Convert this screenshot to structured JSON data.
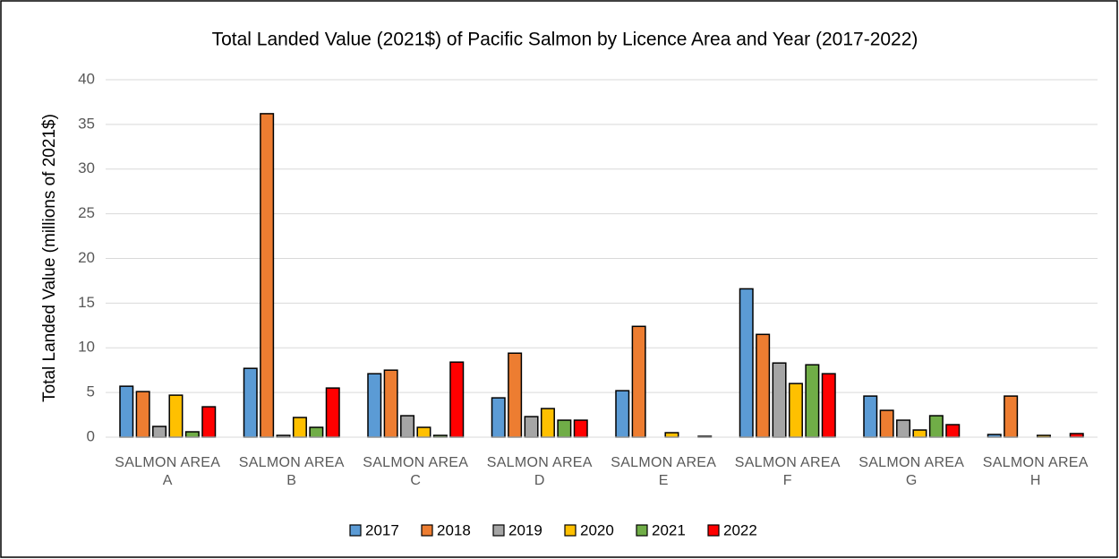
{
  "chart_data": {
    "type": "bar",
    "title": "Total Landed Value (2021$) of Pacific Salmon by Licence Area and Year (2017-2022)",
    "ylabel": "Total Landed Value (millions of 2021$)",
    "categories": [
      "SALMON AREA A",
      "SALMON AREA B",
      "SALMON AREA C",
      "SALMON AREA D",
      "SALMON AREA E",
      "SALMON AREA F",
      "SALMON AREA G",
      "SALMON AREA H"
    ],
    "series": [
      {
        "name": "2017",
        "color": "#5b9bd5",
        "values": [
          5.7,
          7.7,
          7.1,
          4.4,
          5.2,
          16.6,
          4.6,
          0.3
        ]
      },
      {
        "name": "2018",
        "color": "#ed7d31",
        "values": [
          5.1,
          36.2,
          7.5,
          9.4,
          12.4,
          11.5,
          3.0,
          4.6
        ]
      },
      {
        "name": "2019",
        "color": "#a5a5a5",
        "values": [
          1.2,
          0.2,
          2.4,
          2.3,
          0,
          8.3,
          1.9,
          0
        ]
      },
      {
        "name": "2020",
        "color": "#ffc000",
        "values": [
          4.7,
          2.2,
          1.1,
          3.2,
          0.5,
          6.0,
          0.8,
          0.2
        ]
      },
      {
        "name": "2021",
        "color": "#70ad47",
        "values": [
          0.6,
          1.1,
          0.2,
          1.9,
          0,
          8.1,
          2.4,
          0
        ]
      },
      {
        "name": "2022",
        "color": "#ff0000",
        "values": [
          3.4,
          5.5,
          8.4,
          1.9,
          0.1,
          7.1,
          1.4,
          0.4
        ]
      }
    ],
    "ylim": [
      0,
      40
    ],
    "yticks": [
      0,
      5,
      10,
      15,
      20,
      25,
      30,
      35,
      40
    ],
    "grid": true,
    "legend": "bottom"
  }
}
